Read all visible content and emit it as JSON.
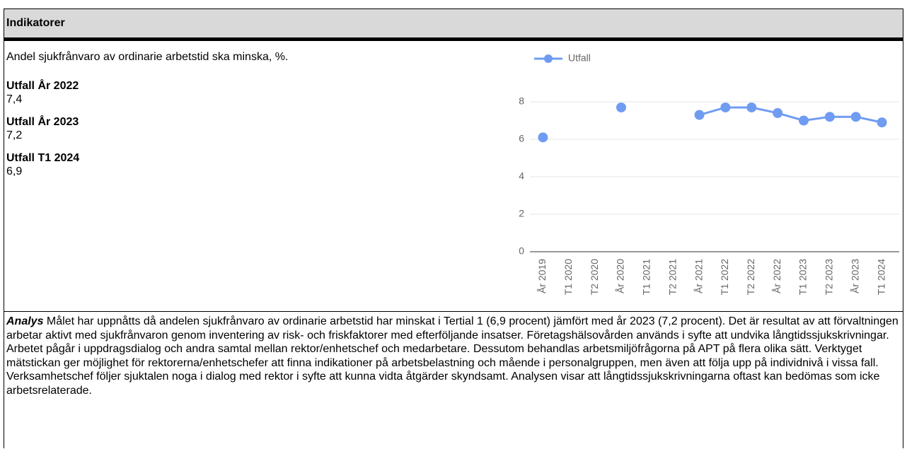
{
  "header": {
    "title": "Indikatorer"
  },
  "indicator": {
    "description": "Andel sjukfrånvaro av ordinarie arbetstid ska minska, %.",
    "results": [
      {
        "label": "Utfall År 2022",
        "value": "7,4"
      },
      {
        "label": "Utfall År 2023",
        "value": "7,2"
      },
      {
        "label": "Utfall T1 2024",
        "value": "6,9"
      }
    ]
  },
  "chart_data": {
    "type": "line",
    "categories": [
      "År 2019",
      "T1 2020",
      "T2 2020",
      "År 2020",
      "T1 2021",
      "T2 2021",
      "År 2021",
      "T1 2022",
      "T2 2022",
      "År 2022",
      "T1 2023",
      "T2 2023",
      "År 2023",
      "T1 2024"
    ],
    "series": [
      {
        "name": "Utfall",
        "color": "#6f9cf2",
        "values": [
          6.1,
          null,
          null,
          7.7,
          null,
          null,
          7.3,
          7.7,
          7.7,
          7.4,
          7.0,
          7.2,
          7.2,
          6.9
        ]
      }
    ],
    "ylim": [
      0,
      8
    ],
    "yticks": [
      0,
      2,
      4,
      6,
      8
    ],
    "grid": true,
    "legend": "top-left"
  },
  "analysis": {
    "label": "Analys",
    "text": "Målet har uppnåtts då andelen sjukfrånvaro av ordinarie arbetstid har minskat i Tertial 1 (6,9 procent) jämfört med år 2023 (7,2 procent). Det är resultat av att förvaltningen arbetar aktivt med sjukfrånvaron genom inventering av risk- och friskfaktorer med efterföljande insatser. Företagshälsovården används i syfte att undvika långtidssjukskrivningar. Arbetet pågår i uppdragsdialog och andra samtal mellan rektor/enhetschef och medarbetare. Dessutom behandlas arbetsmiljöfrågorna på APT på flera olika sätt. Verktyget mätstickan ger möjlighet för rektorerna/enhetschefer att finna indikationer på arbetsbelastning och mående i personalgruppen, men även att följa upp på individnivå i vissa fall. Verksamhetschef följer sjuktalen noga i dialog med rektor i syfte att kunna vidta åtgärder skyndsamt. Analysen visar att långtidssjukskrivningarna oftast kan bedömas som icke arbetsrelaterade."
  }
}
